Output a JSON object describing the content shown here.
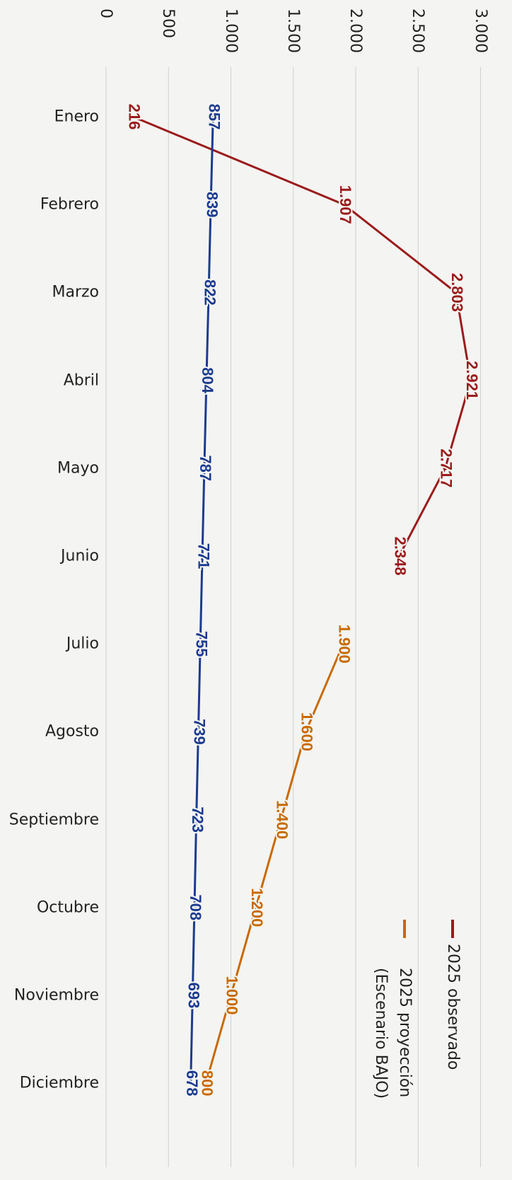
{
  "chart_data": {
    "type": "line",
    "orientation": "rotated-90",
    "categories": [
      "Enero",
      "Febrero",
      "Marzo",
      "Abril",
      "Mayo",
      "Junio",
      "Julio",
      "Agosto",
      "Septiembre",
      "Octubre",
      "Noviembre",
      "Diciembre"
    ],
    "value_axis": {
      "min": 0,
      "max": 3000,
      "ticks": [
        0,
        500,
        1000,
        1500,
        2000,
        2500,
        3000
      ],
      "tick_labels": [
        "0",
        "500",
        "1.000",
        "1.500",
        "2.000",
        "2.500",
        "3.000"
      ]
    },
    "grid": true,
    "legend": {
      "placement": "bottom-right",
      "entries": [
        "2025 observado",
        "2025 proyección (Escenario BAJO)"
      ]
    },
    "series": [
      {
        "name": "2025 observado",
        "color": "#9b1b1b",
        "values": [
          216,
          1907,
          2803,
          2921,
          2717,
          2348,
          null,
          null,
          null,
          null,
          null,
          null
        ],
        "labels": [
          "216",
          "1.907",
          "2.803",
          "2.921",
          "2.717",
          "2.348",
          "",
          "",
          "",
          "",
          "",
          ""
        ]
      },
      {
        "name": "2025 proyección (Escenario BAJO)",
        "color": "#c86a00",
        "values": [
          null,
          null,
          null,
          null,
          null,
          null,
          1900,
          1600,
          1400,
          1200,
          1000,
          800
        ],
        "labels": [
          "",
          "",
          "",
          "",
          "",
          "",
          "1.900",
          "1.600",
          "1.400",
          "1.200",
          "1.000",
          "800"
        ]
      },
      {
        "name": "",
        "color": "#1c3b8f",
        "values": [
          857,
          839,
          822,
          804,
          787,
          771,
          755,
          739,
          723,
          708,
          693,
          678
        ],
        "labels": [
          "857",
          "839",
          "822",
          "804",
          "787",
          "771",
          "755",
          "739",
          "723",
          "708",
          "693",
          "678"
        ]
      }
    ]
  }
}
